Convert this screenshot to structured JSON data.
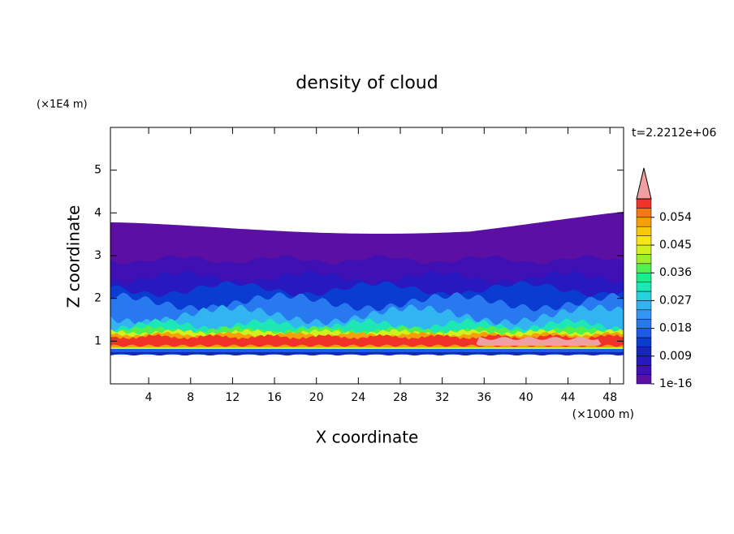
{
  "chart_data": {
    "type": "contour",
    "title": "density of cloud",
    "time_label": "t=2.2212e+06",
    "x_label": "X coordinate",
    "y_label": "Z coordinate",
    "x_unit": "(×1000 m)",
    "y_unit": "(×1E4 m)",
    "xlim": [
      0.35,
      49.3
    ],
    "xticks": [
      4,
      8,
      12,
      16,
      20,
      24,
      28,
      32,
      36,
      40,
      44,
      48
    ],
    "ylim": [
      0,
      6
    ],
    "yticks": [
      1,
      2,
      3,
      4,
      5
    ],
    "colorbar": {
      "clim": [
        0,
        0.06
      ],
      "ticks": [
        1e-16,
        0.009,
        0.018,
        0.027,
        0.036,
        0.045,
        0.054
      ],
      "colors": [
        "#5b0fa3",
        "#3f10b4",
        "#2818c0",
        "#1428b4",
        "#0a3cd2",
        "#1e5ae6",
        "#2878f0",
        "#3296f5",
        "#32b4f0",
        "#28d2dc",
        "#1ee6b4",
        "#14f08c",
        "#50f050",
        "#96f032",
        "#d2f01e",
        "#f5e614",
        "#f5c80a",
        "#f5a00a",
        "#f57814",
        "#f03228"
      ],
      "over_color": "#f0a0a0"
    }
  }
}
